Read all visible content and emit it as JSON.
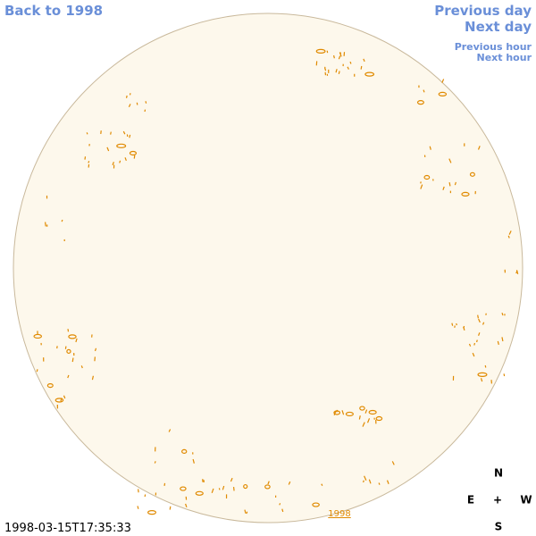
{
  "navigation": {
    "back": "Back to 1998",
    "previous_day": "Previous day",
    "next_day": "Next day",
    "previous_hour": "Previous hour",
    "next_hour": "Next hour"
  },
  "timestamp": "1998-03-15T17:35:33",
  "compass": {
    "north": "N",
    "east": "E",
    "center": "+",
    "west": "W",
    "south": "S"
  },
  "year_label": "1998"
}
